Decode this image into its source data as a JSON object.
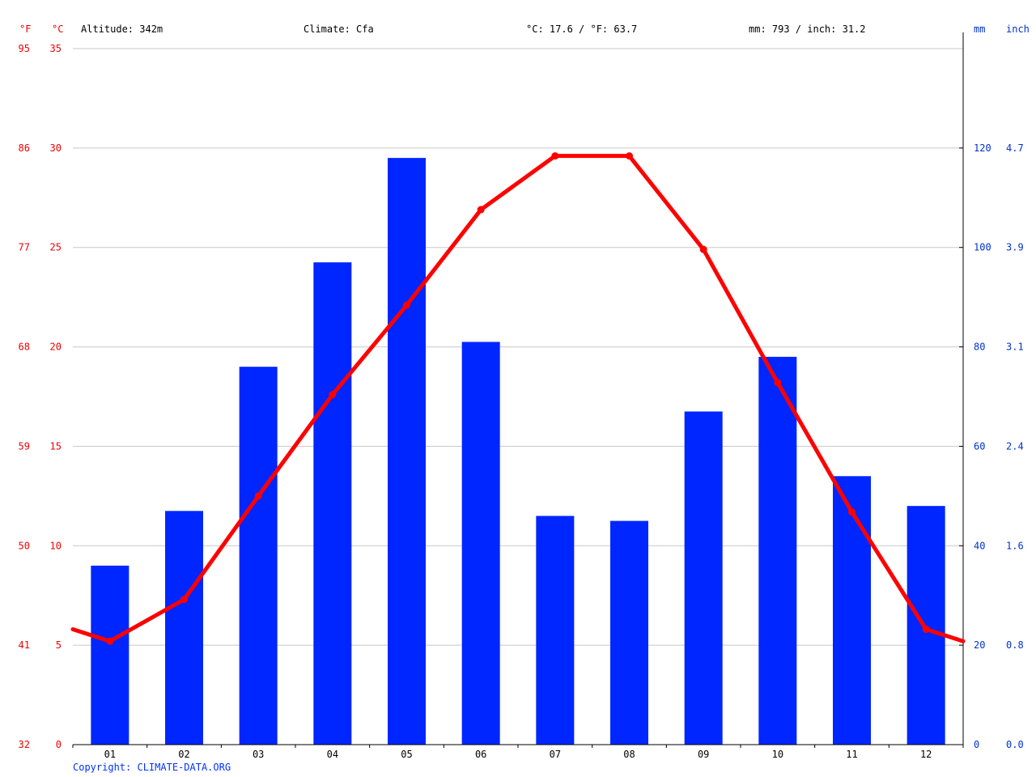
{
  "header": {
    "altitude": "Altitude: 342m",
    "climate": "Climate: Cfa",
    "avg_temp": "°C: 17.6 / °F: 63.7",
    "precip": "mm: 793 / inch: 31.2"
  },
  "axes": {
    "left_f_unit": "°F",
    "left_c_unit": "°C",
    "right_mm_unit": "mm",
    "right_inch_unit": "inch",
    "celsius_ticks": [
      "0",
      "5",
      "10",
      "15",
      "20",
      "25",
      "30",
      "35"
    ],
    "fahrenheit_ticks": [
      "32",
      "41",
      "50",
      "59",
      "68",
      "77",
      "86",
      "95"
    ],
    "mm_ticks": [
      "0",
      "20",
      "40",
      "60",
      "80",
      "100",
      "120"
    ],
    "inch_ticks": [
      "0.0",
      "0.8",
      "1.6",
      "2.4",
      "3.1",
      "3.9",
      "4.7"
    ]
  },
  "copyright": "Copyright: CLIMATE-DATA.ORG",
  "colors": {
    "bars": "#0026ff",
    "temp_line": "#ff0000",
    "grid": "#c8c8c8",
    "temp_axis_text": "#ee0000",
    "precip_axis_text": "#0033cc"
  },
  "chart_data": {
    "type": "bar",
    "categories": [
      "01",
      "02",
      "03",
      "04",
      "05",
      "06",
      "07",
      "08",
      "09",
      "10",
      "11",
      "12"
    ],
    "series": [
      {
        "type": "bar",
        "axis": "mm",
        "values": [
          36,
          47,
          76,
          97,
          118,
          81,
          46,
          45,
          67,
          78,
          54,
          48
        ]
      },
      {
        "type": "line",
        "axis": "celsius",
        "values": [
          5.2,
          7.3,
          12.5,
          17.6,
          22.1,
          26.9,
          29.6,
          29.6,
          24.9,
          18.2,
          11.7,
          5.8
        ]
      }
    ],
    "ylim_celsius": [
      0,
      35
    ],
    "ylim_mm": [
      0,
      140
    ],
    "grid": true
  }
}
